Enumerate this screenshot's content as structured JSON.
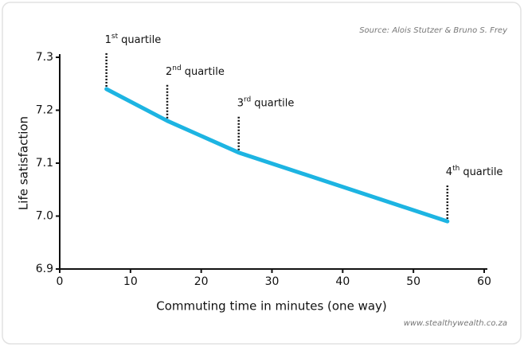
{
  "chart_data": {
    "type": "line",
    "source": "Source: Alois Stutzer & Bruno S. Frey",
    "watermark": "www.stealthywealth.co.za",
    "x_label": "Commuting time in minutes (one way)",
    "y_label": "Life satisfaction",
    "x": [
      6.6,
      15.2,
      25.3,
      54.8
    ],
    "values": [
      7.24,
      7.18,
      7.12,
      6.99
    ],
    "color": "#1db4e2",
    "annotations": [
      {
        "number": "1",
        "suffix": "st",
        "text": "quartile"
      },
      {
        "number": "2",
        "suffix": "nd",
        "text": "quartile"
      },
      {
        "number": "3",
        "suffix": "rd",
        "text": "quartile"
      },
      {
        "number": "4",
        "suffix": "th",
        "text": "quartile"
      }
    ],
    "xlim": [
      0,
      60
    ],
    "xticks": [
      0,
      10,
      20,
      30,
      40,
      50,
      60
    ],
    "ylim": [
      6.9,
      7.3
    ],
    "yticks": [
      6.9,
      {
        "value": 7,
        "label": "7.0"
      },
      7.1,
      7.2,
      7.3
    ]
  }
}
